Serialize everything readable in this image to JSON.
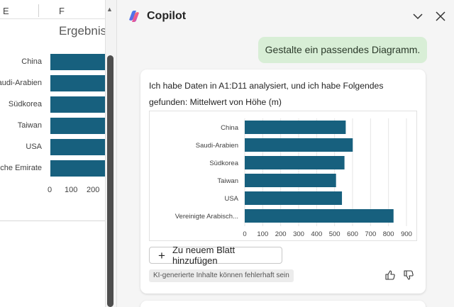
{
  "excel": {
    "columns": [
      "E",
      "F"
    ],
    "chart_title": "Ergebnis",
    "labels": [
      "China",
      "Saudi-Arabien",
      "Südkorea",
      "Taiwan",
      "USA",
      "Vereinigte Arabische Emirate"
    ],
    "visible_labels": [
      "China",
      "audi-Arabien",
      "Südkorea",
      "Taiwan",
      "USA",
      "sche Emirate"
    ],
    "ticks": [
      "0",
      "100",
      "200"
    ]
  },
  "copilot": {
    "title": "Copilot",
    "user_message": "Gestalte ein passendes Diagramm.",
    "response_text": "Ich habe Daten in A1:D11 analysiert, und ich habe Folgendes gefunden: Mittelwert von Höhe (m)",
    "add_button_label": "Zu neuem Blatt hinzufügen",
    "add_button_icon": "+",
    "disclaimer": "KI-generierte Inhalte können fehlerhaft sein",
    "accent_bar_color": "#17607e",
    "user_bubble_color": "#d8eed6"
  },
  "chart_data": {
    "type": "bar",
    "orientation": "horizontal",
    "title": "Mittelwert von Höhe (m)",
    "categories": [
      "China",
      "Saudi-Arabien",
      "Südkorea",
      "Taiwan",
      "USA",
      "Vereinigte Arabisch..."
    ],
    "values": [
      562,
      601,
      555,
      508,
      541,
      828
    ],
    "xlim": [
      0,
      900
    ],
    "ticks": [
      "0",
      "100",
      "200",
      "300",
      "400",
      "500",
      "600",
      "700",
      "800",
      "900"
    ],
    "grid": true,
    "legend": "none",
    "color": "#17607e"
  }
}
